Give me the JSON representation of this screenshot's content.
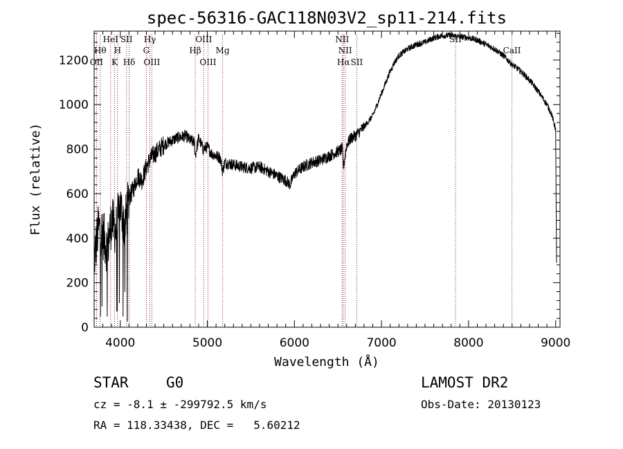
{
  "chart_data": {
    "type": "line",
    "title": "spec-56316-GAC118N03V2_sp11-214.fits",
    "xlabel": "Wavelength (Å)",
    "ylabel": "Flux (relative)",
    "xlim": [
      3700,
      9050
    ],
    "ylim": [
      0,
      1330
    ],
    "xticks": [
      4000,
      5000,
      6000,
      7000,
      8000,
      9000
    ],
    "yticks": [
      0,
      200,
      400,
      600,
      800,
      1000,
      1200
    ],
    "x_tick_labels": [
      "4000",
      "5000",
      "6000",
      "7000",
      "8000",
      "9000"
    ],
    "y_tick_labels": [
      "0",
      "200",
      "400",
      "600",
      "800",
      "1000",
      "1200"
    ],
    "grid": false,
    "series": [
      {
        "x": [
          3700,
          3750,
          3800,
          3850,
          3900,
          3950,
          4000,
          4050,
          4100,
          4150,
          4200,
          4250,
          4300,
          4350,
          4400,
          4450,
          4500,
          4550,
          4600,
          4650,
          4700,
          4750,
          4800,
          4850,
          4861,
          4900,
          4950,
          5000,
          5050,
          5100,
          5150,
          5175,
          5200,
          5300,
          5400,
          5500,
          5600,
          5700,
          5800,
          5900,
          5950,
          6000,
          6100,
          6200,
          6300,
          6400,
          6500,
          6550,
          6563,
          6600,
          6650,
          6700,
          6800,
          6900,
          7000,
          7050,
          7100,
          7150,
          7200,
          7300,
          7400,
          7500,
          7600,
          7700,
          7800,
          7900,
          8000,
          8100,
          8200,
          8300,
          8400,
          8500,
          8600,
          8700,
          8800,
          8900,
          8950,
          9000,
          9010
        ],
        "y": [
          300,
          450,
          420,
          350,
          480,
          430,
          550,
          450,
          580,
          620,
          680,
          660,
          720,
          760,
          780,
          800,
          820,
          830,
          840,
          850,
          855,
          860,
          840,
          830,
          770,
          850,
          800,
          810,
          780,
          770,
          760,
          700,
          740,
          730,
          720,
          715,
          720,
          700,
          680,
          660,
          640,
          690,
          720,
          740,
          750,
          770,
          790,
          800,
          720,
          820,
          850,
          860,
          900,
          950,
          1050,
          1100,
          1150,
          1190,
          1220,
          1250,
          1270,
          1280,
          1300,
          1310,
          1310,
          1305,
          1300,
          1290,
          1270,
          1250,
          1220,
          1180,
          1150,
          1110,
          1060,
          1000,
          960,
          890,
          300
        ]
      }
    ],
    "line_labels": [
      {
        "wl": 3727,
        "label": "OII",
        "row": 3
      },
      {
        "wl": 3770,
        "label": "Hθ",
        "row": 2
      },
      {
        "wl": 3889,
        "label": "HeI",
        "row": 1
      },
      {
        "wl": 3934,
        "label": "K",
        "row": 3
      },
      {
        "wl": 3969,
        "label": "H",
        "row": 2
      },
      {
        "wl": 4072,
        "label": "SII",
        "row": 1
      },
      {
        "wl": 4102,
        "label": "Hδ",
        "row": 3
      },
      {
        "wl": 4300,
        "label": "G",
        "row": 2
      },
      {
        "wl": 4340,
        "label": "Hγ",
        "row": 1
      },
      {
        "wl": 4363,
        "label": "OIII",
        "row": 3
      },
      {
        "wl": 4861,
        "label": "Hβ",
        "row": 2
      },
      {
        "wl": 4959,
        "label": "OIII",
        "row": 1
      },
      {
        "wl": 5007,
        "label": "OIII",
        "row": 3
      },
      {
        "wl": 5175,
        "label": "Mg",
        "row": 2
      },
      {
        "wl": 6548,
        "label": "NII",
        "row": 1
      },
      {
        "wl": 6563,
        "label": "Hα",
        "row": 3
      },
      {
        "wl": 6583,
        "label": "NII",
        "row": 2
      },
      {
        "wl": 6716,
        "label": "SII",
        "row": 3
      },
      {
        "wl": 7850,
        "label": "SII",
        "row": 1
      },
      {
        "wl": 8498,
        "label": "CaII",
        "row": 2
      }
    ],
    "colors": {
      "spectrum": "#000000",
      "line_markers": "#8b1a1a"
    }
  },
  "info": {
    "object_class": "STAR",
    "subclass": "G0",
    "survey": "LAMOST DR2",
    "velocity": "cz = -8.1 ± -299792.5 km/s",
    "obs_date": "Obs-Date: 20130123",
    "coords": "RA = 118.33438, DEC =   5.60212"
  }
}
